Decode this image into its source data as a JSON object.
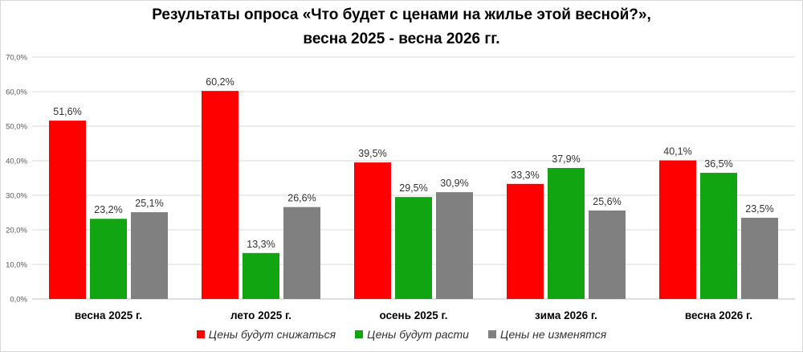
{
  "chart_data": {
    "type": "bar",
    "title_line1": "Результаты опроса «Что будет с ценами на жилье этой весной?»,",
    "title_line2": "весна 2025 -  весна 2026 гг.",
    "categories": [
      "весна 2025 г.",
      "лето 2025 г.",
      "осень 2025 г.",
      "зима 2026 г.",
      "весна 2026 г."
    ],
    "series": [
      {
        "name": "Цены будут снижаться",
        "color": "#ff0000",
        "values": [
          51.6,
          60.2,
          39.5,
          33.3,
          40.1
        ],
        "labels": [
          "51,6%",
          "60,2%",
          "39,5%",
          "33,3%",
          "40,1%"
        ]
      },
      {
        "name": "Цены будут расти",
        "color": "#11a611",
        "values": [
          23.2,
          13.3,
          29.5,
          37.9,
          36.5
        ],
        "labels": [
          "23,2%",
          "13,3%",
          "29,5%",
          "37,9%",
          "36,5%"
        ]
      },
      {
        "name": "Цены не изменятся",
        "color": "#808080",
        "values": [
          25.1,
          26.6,
          30.9,
          25.6,
          23.5
        ],
        "labels": [
          "25,1%",
          "26,6%",
          "30,9%",
          "25,6%",
          "23,5%"
        ]
      }
    ],
    "yticks": [
      0,
      10,
      20,
      30,
      40,
      50,
      60,
      70
    ],
    "ytick_labels": [
      "0,0%",
      "10,0%",
      "20,0%",
      "30,0%",
      "40,0%",
      "50,0%",
      "60,0%",
      "70,0%"
    ],
    "ylim": [
      0,
      70
    ],
    "grid": true,
    "legend_position": "bottom"
  }
}
